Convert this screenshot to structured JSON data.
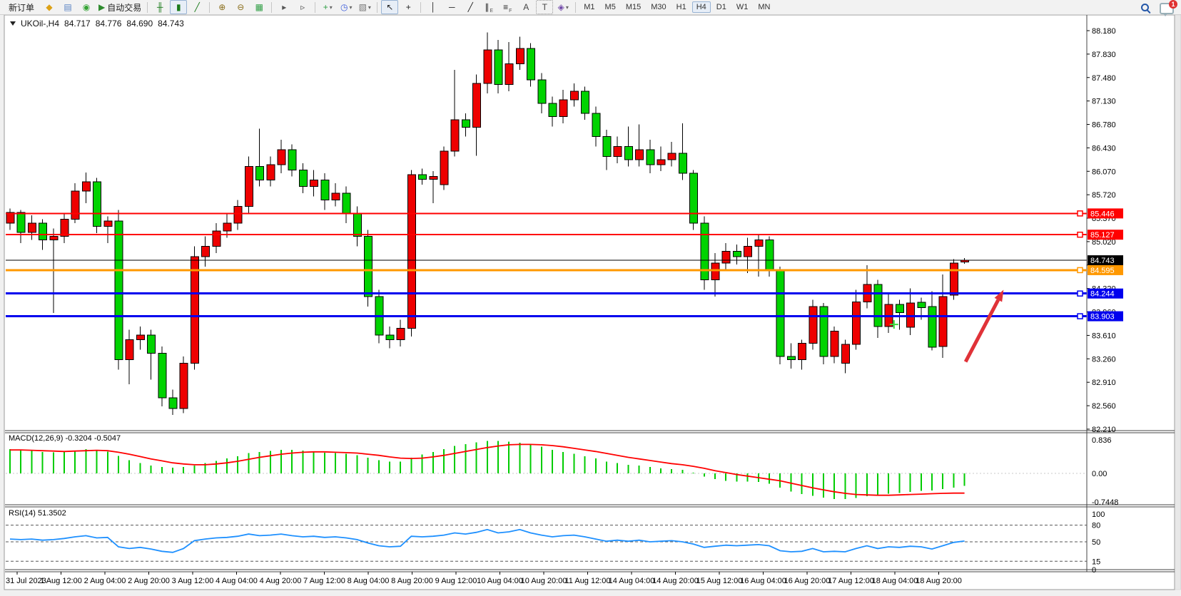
{
  "toolbar": {
    "new_order_label": "新订单",
    "autotrade_label": "自动交易",
    "timeframes": [
      "M1",
      "M5",
      "M15",
      "M30",
      "H1",
      "H4",
      "D1",
      "W1",
      "MN"
    ],
    "active_timeframe": "H4",
    "chat_badge": "1",
    "groups": [
      [
        {
          "name": "new-order-button",
          "type": "text",
          "label": "新订单"
        },
        {
          "name": "order-book-icon",
          "glyph": "◆",
          "color": "#dca116"
        },
        {
          "name": "market-watch-icon",
          "glyph": "▤",
          "color": "#5b84c4"
        },
        {
          "name": "signals-icon",
          "glyph": "◉",
          "color": "#35a435"
        },
        {
          "name": "autotrade-button",
          "type": "icontext",
          "glyph": "▶",
          "color": "#2e8b2e",
          "label": "自动交易"
        }
      ],
      [
        {
          "name": "ohlc-bars-icon",
          "glyph": "╫",
          "color": "#1a7a1a"
        },
        {
          "name": "candlestick-icon",
          "glyph": "▮",
          "color": "#1a7a1a",
          "pressed": true
        },
        {
          "name": "line-chart-icon",
          "glyph": "╱",
          "color": "#1a7a1a"
        }
      ],
      [
        {
          "name": "zoom-in-icon",
          "glyph": "⊕",
          "color": "#8a6d1a"
        },
        {
          "name": "zoom-out-icon",
          "glyph": "⊖",
          "color": "#8a6d1a"
        },
        {
          "name": "tile-windows-icon",
          "glyph": "▦",
          "color": "#2f9e44"
        }
      ],
      [
        {
          "name": "auto-scroll-icon",
          "glyph": "▸",
          "color": "#555555"
        },
        {
          "name": "chart-shift-icon",
          "glyph": "▹",
          "color": "#555555"
        }
      ],
      [
        {
          "name": "new-chart-icon",
          "glyph": "+",
          "color": "#2f9e44",
          "dropdown": true
        },
        {
          "name": "period-clock-icon",
          "glyph": "◷",
          "color": "#3b5bdb",
          "dropdown": true
        },
        {
          "name": "template-icon",
          "glyph": "▧",
          "color": "#777777",
          "dropdown": true
        }
      ],
      [
        {
          "name": "cursor-icon",
          "glyph": "↖",
          "color": "#222222",
          "pressed": true
        },
        {
          "name": "crosshair-icon",
          "glyph": "+",
          "color": "#222222"
        }
      ],
      [
        {
          "name": "vertical-line-icon",
          "glyph": "│",
          "color": "#222222"
        },
        {
          "name": "horizontal-line-icon",
          "glyph": "─",
          "color": "#222222"
        },
        {
          "name": "trendline-icon",
          "glyph": "╱",
          "color": "#222222"
        },
        {
          "name": "channel-icon",
          "glyph": "∥",
          "color": "#222222",
          "sub": "E"
        },
        {
          "name": "fibonacci-icon",
          "glyph": "≡",
          "color": "#222222",
          "sub": "F"
        },
        {
          "name": "text-icon",
          "glyph": "A",
          "color": "#444444"
        },
        {
          "name": "label-icon",
          "glyph": "T",
          "color": "#444444",
          "boxed": true
        },
        {
          "name": "arrows-icon",
          "glyph": "◈",
          "color": "#7048a8",
          "dropdown": true
        }
      ]
    ]
  },
  "quote": {
    "symbol": "UKOil-,H4",
    "open": "84.717",
    "high": "84.776",
    "low": "84.690",
    "close": "84.743"
  },
  "chart_data": {
    "type": "candlestick",
    "symbol": "UKOil-",
    "timeframe": "H4",
    "up_color": "#ee0000",
    "down_color": "#00d300",
    "wick_color": "#000000",
    "background": "#ffffff",
    "price_axis_labels": [
      "88.180",
      "87.830",
      "87.480",
      "87.130",
      "86.780",
      "86.430",
      "86.070",
      "85.720",
      "85.370",
      "85.020",
      "84.670",
      "84.320",
      "83.960",
      "83.610",
      "83.260",
      "82.910",
      "82.560",
      "82.210"
    ],
    "time_axis_labels": [
      "31 Jul 2023",
      "1 Aug 12:00",
      "2 Aug 04:00",
      "2 Aug 20:00",
      "3 Aug 12:00",
      "4 Aug 04:00",
      "4 Aug 20:00",
      "7 Aug 12:00",
      "8 Aug 04:00",
      "8 Aug 20:00",
      "9 Aug 12:00",
      "10 Aug 04:00",
      "10 Aug 20:00",
      "11 Aug 12:00",
      "14 Aug 04:00",
      "14 Aug 20:00",
      "15 Aug 12:00",
      "16 Aug 04:00",
      "16 Aug 20:00",
      "17 Aug 12:00",
      "18 Aug 04:00",
      "18 Aug 20:00"
    ],
    "candles": [
      [
        85.3,
        85.52,
        85.2,
        85.46
      ],
      [
        85.46,
        85.5,
        85.0,
        85.16
      ],
      [
        85.16,
        85.42,
        85.05,
        85.3
      ],
      [
        85.3,
        85.36,
        84.9,
        85.05
      ],
      [
        85.05,
        85.22,
        83.95,
        85.1
      ],
      [
        85.1,
        85.45,
        85.0,
        85.36
      ],
      [
        85.36,
        85.9,
        85.3,
        85.78
      ],
      [
        85.78,
        86.06,
        85.6,
        85.92
      ],
      [
        85.92,
        85.98,
        85.15,
        85.25
      ],
      [
        85.25,
        85.4,
        85.0,
        85.33
      ],
      [
        85.33,
        85.5,
        83.1,
        83.25
      ],
      [
        83.25,
        83.7,
        82.88,
        83.55
      ],
      [
        83.55,
        83.75,
        83.4,
        83.62
      ],
      [
        83.62,
        83.7,
        82.95,
        83.35
      ],
      [
        83.35,
        83.45,
        82.55,
        82.68
      ],
      [
        82.68,
        82.8,
        82.42,
        82.52
      ],
      [
        82.52,
        83.3,
        82.45,
        83.2
      ],
      [
        83.2,
        84.95,
        83.1,
        84.8
      ],
      [
        84.8,
        85.1,
        84.65,
        84.95
      ],
      [
        84.95,
        85.3,
        84.85,
        85.18
      ],
      [
        85.18,
        85.45,
        85.08,
        85.3
      ],
      [
        85.3,
        85.65,
        85.2,
        85.55
      ],
      [
        85.55,
        86.3,
        85.45,
        86.15
      ],
      [
        86.15,
        86.72,
        85.85,
        85.95
      ],
      [
        85.95,
        86.3,
        85.85,
        86.18
      ],
      [
        86.18,
        86.55,
        86.05,
        86.4
      ],
      [
        86.4,
        86.48,
        86.0,
        86.1
      ],
      [
        86.1,
        86.2,
        85.75,
        85.85
      ],
      [
        85.85,
        86.1,
        85.7,
        85.95
      ],
      [
        85.95,
        86.05,
        85.5,
        85.65
      ],
      [
        85.65,
        85.9,
        85.55,
        85.75
      ],
      [
        85.75,
        85.85,
        85.3,
        85.45
      ],
      [
        85.45,
        85.55,
        84.95,
        85.1
      ],
      [
        85.1,
        85.2,
        84.05,
        84.2
      ],
      [
        84.2,
        84.3,
        83.5,
        83.62
      ],
      [
        83.62,
        83.75,
        83.42,
        83.55
      ],
      [
        83.55,
        83.85,
        83.45,
        83.72
      ],
      [
        83.72,
        86.1,
        83.6,
        86.03
      ],
      [
        86.03,
        86.12,
        85.88,
        85.96
      ],
      [
        85.96,
        86.08,
        85.6,
        86.0
      ],
      [
        85.88,
        86.45,
        85.8,
        86.38
      ],
      [
        86.38,
        87.6,
        86.3,
        86.85
      ],
      [
        86.85,
        86.95,
        86.6,
        86.74
      ],
      [
        86.74,
        87.53,
        86.31,
        87.4
      ],
      [
        87.4,
        88.16,
        87.25,
        87.9
      ],
      [
        87.9,
        88.05,
        87.25,
        87.38
      ],
      [
        87.38,
        88.02,
        87.28,
        87.69
      ],
      [
        87.69,
        88.1,
        87.6,
        87.92
      ],
      [
        87.92,
        88.0,
        87.35,
        87.45
      ],
      [
        87.45,
        87.55,
        86.95,
        87.1
      ],
      [
        87.1,
        87.2,
        86.75,
        86.9
      ],
      [
        86.9,
        87.3,
        86.8,
        87.15
      ],
      [
        87.15,
        87.4,
        87.05,
        87.28
      ],
      [
        87.28,
        87.35,
        86.85,
        86.95
      ],
      [
        86.95,
        87.05,
        86.45,
        86.6
      ],
      [
        86.6,
        86.7,
        86.1,
        86.3
      ],
      [
        86.3,
        86.6,
        86.2,
        86.45
      ],
      [
        86.45,
        86.75,
        86.15,
        86.25
      ],
      [
        86.25,
        86.78,
        86.15,
        86.4
      ],
      [
        86.4,
        86.55,
        86.05,
        86.18
      ],
      [
        86.18,
        86.45,
        86.08,
        86.25
      ],
      [
        86.25,
        86.52,
        86.15,
        86.35
      ],
      [
        86.35,
        86.8,
        85.95,
        86.05
      ],
      [
        86.05,
        86.1,
        85.2,
        85.3
      ],
      [
        85.3,
        85.4,
        84.3,
        84.45
      ],
      [
        84.45,
        84.85,
        84.2,
        84.7
      ],
      [
        84.7,
        85.0,
        84.6,
        84.88
      ],
      [
        84.88,
        84.98,
        84.68,
        84.8
      ],
      [
        84.8,
        85.08,
        84.55,
        84.95
      ],
      [
        84.95,
        85.12,
        84.5,
        85.05
      ],
      [
        85.05,
        85.1,
        84.5,
        84.6
      ],
      [
        84.6,
        84.65,
        83.18,
        83.3
      ],
      [
        83.3,
        83.5,
        83.12,
        83.25
      ],
      [
        83.25,
        83.55,
        83.1,
        83.5
      ],
      [
        83.5,
        84.15,
        83.4,
        84.05
      ],
      [
        84.05,
        84.1,
        83.18,
        83.3
      ],
      [
        83.3,
        83.75,
        83.2,
        83.68
      ],
      [
        83.2,
        83.55,
        83.05,
        83.48
      ],
      [
        83.48,
        84.3,
        83.4,
        84.12
      ],
      [
        84.12,
        84.67,
        84.02,
        84.38
      ],
      [
        84.38,
        84.45,
        83.58,
        83.75
      ],
      [
        83.75,
        84.25,
        83.65,
        84.08
      ],
      [
        84.08,
        84.15,
        83.7,
        83.96
      ],
      [
        83.74,
        84.32,
        83.62,
        84.1
      ],
      [
        84.11,
        84.18,
        83.85,
        84.03
      ],
      [
        84.05,
        84.28,
        83.39,
        83.44
      ],
      [
        83.45,
        84.53,
        83.28,
        84.2
      ],
      [
        84.22,
        84.76,
        84.15,
        84.7
      ],
      [
        84.717,
        84.776,
        84.69,
        84.743
      ]
    ],
    "hlines": [
      {
        "name": "resistance-line-1",
        "price": 85.446,
        "label": "85.446",
        "color": "#ff0000",
        "width": 2,
        "marker": true
      },
      {
        "name": "resistance-line-2",
        "price": 85.127,
        "label": "85.127",
        "color": "#ff0000",
        "width": 2,
        "marker": true
      },
      {
        "name": "bid-price-line",
        "price": 84.743,
        "label": "84.743",
        "color": "#000000",
        "width": 1,
        "marker": false
      },
      {
        "name": "orange-level-line",
        "price": 84.595,
        "label": "84.595",
        "color": "#ff9800",
        "width": 3,
        "marker": true
      },
      {
        "name": "support-line-1",
        "price": 84.244,
        "label": "84.244",
        "color": "#0000ee",
        "width": 3,
        "marker": true
      },
      {
        "name": "support-line-2",
        "price": 83.903,
        "label": "83.903",
        "color": "#0000ee",
        "width": 3,
        "marker": true
      }
    ],
    "indicators": [
      {
        "name": "MACD",
        "label": "MACD(12,26,9) -0.3204 -0.5047",
        "axis_labels": [
          "0.836",
          "0.00",
          "-0.7448"
        ],
        "hist_color": "#00cc00",
        "signal_color": "#ff0000",
        "histogram": [
          0.62,
          0.6,
          0.58,
          0.55,
          0.54,
          0.55,
          0.58,
          0.62,
          0.6,
          0.56,
          0.45,
          0.34,
          0.26,
          0.2,
          0.16,
          0.15,
          0.16,
          0.2,
          0.26,
          0.32,
          0.38,
          0.44,
          0.52,
          0.55,
          0.57,
          0.6,
          0.6,
          0.58,
          0.56,
          0.53,
          0.52,
          0.5,
          0.46,
          0.4,
          0.34,
          0.3,
          0.3,
          0.4,
          0.48,
          0.55,
          0.62,
          0.7,
          0.75,
          0.79,
          0.83,
          0.83,
          0.81,
          0.78,
          0.74,
          0.68,
          0.6,
          0.55,
          0.5,
          0.44,
          0.38,
          0.3,
          0.26,
          0.22,
          0.2,
          0.16,
          0.13,
          0.11,
          0.09,
          0.02,
          -0.08,
          -0.15,
          -0.19,
          -0.21,
          -0.21,
          -0.22,
          -0.26,
          -0.36,
          -0.46,
          -0.53,
          -0.57,
          -0.62,
          -0.66,
          -0.66,
          -0.63,
          -0.58,
          -0.55,
          -0.52,
          -0.5,
          -0.47,
          -0.45,
          -0.44,
          -0.4,
          -0.36,
          -0.3204
        ],
        "signal": [
          0.6,
          0.6,
          0.59,
          0.58,
          0.57,
          0.56,
          0.57,
          0.58,
          0.59,
          0.58,
          0.54,
          0.49,
          0.43,
          0.37,
          0.32,
          0.27,
          0.24,
          0.22,
          0.22,
          0.24,
          0.27,
          0.31,
          0.36,
          0.41,
          0.45,
          0.49,
          0.52,
          0.54,
          0.55,
          0.55,
          0.54,
          0.53,
          0.52,
          0.49,
          0.46,
          0.42,
          0.39,
          0.38,
          0.39,
          0.42,
          0.46,
          0.51,
          0.56,
          0.61,
          0.66,
          0.7,
          0.73,
          0.74,
          0.74,
          0.73,
          0.71,
          0.68,
          0.64,
          0.6,
          0.56,
          0.51,
          0.46,
          0.41,
          0.37,
          0.33,
          0.29,
          0.25,
          0.22,
          0.18,
          0.13,
          0.07,
          0.02,
          -0.03,
          -0.07,
          -0.11,
          -0.15,
          -0.19,
          -0.25,
          -0.31,
          -0.37,
          -0.42,
          -0.47,
          -0.51,
          -0.54,
          -0.55,
          -0.56,
          -0.56,
          -0.55,
          -0.54,
          -0.53,
          -0.52,
          -0.51,
          -0.505,
          -0.5047
        ]
      },
      {
        "name": "RSI",
        "label": "RSI(14) 51.3502",
        "axis_labels": [
          "100",
          "80",
          "50",
          "15",
          "0"
        ],
        "levels": [
          80,
          50,
          15
        ],
        "color": "#1e90ff",
        "range": [
          0,
          100
        ],
        "values": [
          55,
          54,
          55,
          53,
          54,
          56,
          59,
          61,
          57,
          58,
          41,
          38,
          40,
          37,
          33,
          31,
          38,
          52,
          55,
          57,
          58,
          60,
          64,
          61,
          62,
          64,
          61,
          59,
          60,
          58,
          59,
          57,
          54,
          48,
          43,
          41,
          42,
          60,
          59,
          60,
          62,
          66,
          64,
          67,
          72,
          66,
          68,
          72,
          66,
          62,
          59,
          61,
          62,
          59,
          55,
          51,
          53,
          51,
          53,
          50,
          51,
          52,
          50,
          46,
          40,
          42,
          44,
          43,
          44,
          45,
          43,
          34,
          32,
          33,
          38,
          32,
          33,
          32,
          38,
          43,
          38,
          41,
          40,
          42,
          41,
          37,
          43,
          49,
          51.35
        ]
      }
    ],
    "annotations": {
      "trend_arrow": {
        "i1": 88.1,
        "p1": 83.22,
        "i2": 91.6,
        "p2": 84.3,
        "color": "#e03238"
      },
      "cross_marker": {
        "i": 81.5,
        "p": 83.78,
        "color": "#3ddd3d"
      }
    }
  }
}
